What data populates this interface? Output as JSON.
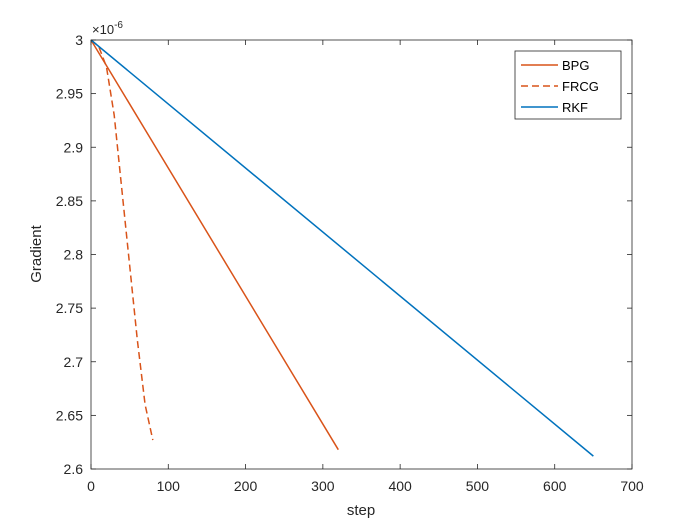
{
  "chart_data": {
    "type": "line",
    "xlabel": "step",
    "ylabel": "Gradient",
    "xlim": [
      0,
      700
    ],
    "ylim": [
      2.6,
      3.0
    ],
    "y_exponent": "-6",
    "x_ticks": [
      0,
      100,
      200,
      300,
      400,
      500,
      600,
      700
    ],
    "y_ticks": [
      2.6,
      2.65,
      2.7,
      2.75,
      2.8,
      2.85,
      2.9,
      2.95,
      3.0
    ],
    "x_tick_labels": [
      "0",
      "100",
      "200",
      "300",
      "400",
      "500",
      "600",
      "700"
    ],
    "y_tick_labels": [
      "2.6",
      "2.65",
      "2.7",
      "2.75",
      "2.8",
      "2.85",
      "2.9",
      "2.95",
      "3"
    ],
    "grid": false,
    "legend_position": "top-right",
    "series": [
      {
        "name": "BPG",
        "color": "#d95319",
        "dash": "solid",
        "x": [
          0,
          320
        ],
        "y": [
          3.0,
          2.618
        ]
      },
      {
        "name": "FRCG",
        "color": "#d95319",
        "dash": "dashed",
        "x": [
          0,
          10,
          20,
          30,
          40,
          50,
          60,
          70,
          80
        ],
        "y": [
          3.0,
          2.994,
          2.975,
          2.93,
          2.86,
          2.79,
          2.72,
          2.66,
          2.627
        ]
      },
      {
        "name": "RKF",
        "color": "#0072bd",
        "dash": "solid",
        "x": [
          0,
          650
        ],
        "y": [
          3.0,
          2.612
        ]
      }
    ]
  }
}
